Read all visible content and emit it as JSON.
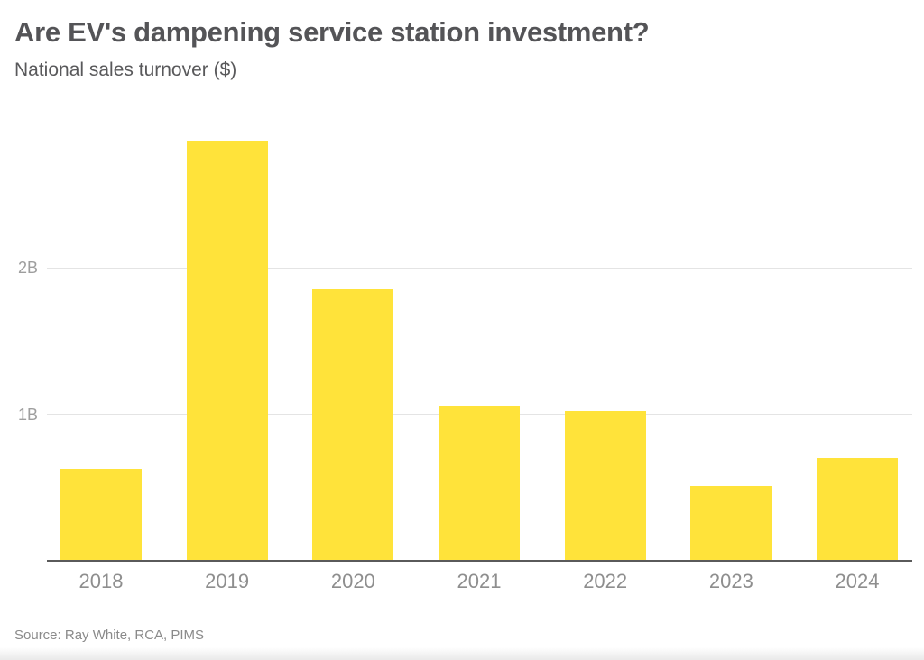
{
  "chart_data": {
    "type": "bar",
    "title": "Are EV's dampening service station investment?",
    "subtitle": "National sales turnover ($)",
    "categories": [
      "2018",
      "2019",
      "2020",
      "2021",
      "2022",
      "2023",
      "2024"
    ],
    "values": [
      0.63,
      2.87,
      1.86,
      1.06,
      1.02,
      0.51,
      0.7
    ],
    "unit": "B",
    "yticks": [
      {
        "value": 1,
        "label": "1B"
      },
      {
        "value": 2,
        "label": "2B"
      }
    ],
    "ylim": [
      0,
      3.03
    ],
    "xlabel": "",
    "ylabel": "",
    "grid": "horizontal",
    "legend": "none",
    "source": "Source: Ray White, RCA, PIMS",
    "colors": {
      "bar": "#FFE33A",
      "title_text": "#545457",
      "axis_line": "#5a5a5a",
      "gridline": "#e4e4e4",
      "tick_text": "#8e8e8e"
    }
  }
}
